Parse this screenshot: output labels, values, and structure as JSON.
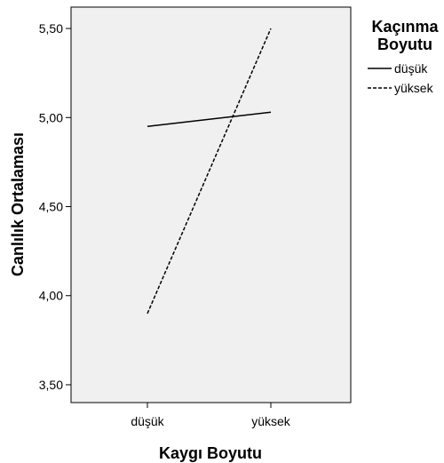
{
  "chart_data": {
    "type": "line",
    "categories": [
      "düşük",
      "yüksek"
    ],
    "xlabel": "Kaygı Boyutu",
    "ylabel": "Canlılık Ortalaması",
    "ylim": [
      3.4,
      5.62
    ],
    "yticks": [
      "3,50",
      "4,00",
      "4,50",
      "5,00",
      "5,50"
    ],
    "ytick_values": [
      3.5,
      4.0,
      4.5,
      5.0,
      5.5
    ],
    "legend": {
      "title_lines": [
        "Kaçınma",
        "Boyutu"
      ],
      "placement": "right"
    },
    "series": [
      {
        "name": "düşük",
        "values": [
          4.95,
          5.03
        ],
        "style": "solid"
      },
      {
        "name": "yüksek",
        "values": [
          3.9,
          5.5
        ],
        "style": "dashed"
      }
    ],
    "colors": {
      "plot_background": "#f0f0f0",
      "line": "#000000"
    },
    "grid": false
  }
}
